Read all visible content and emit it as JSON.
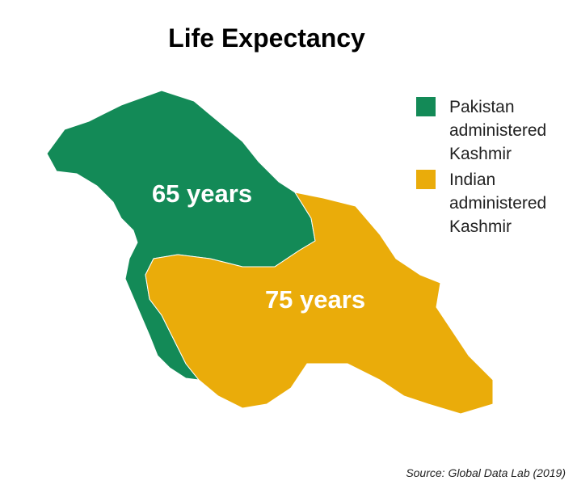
{
  "title": "Life Expectancy",
  "regions": [
    {
      "name": "Pakistan administered Kashmir",
      "color": "#138a57",
      "label": "65 years"
    },
    {
      "name": "Indian administered Kashmir",
      "color": "#eaac0a",
      "label": "75 years"
    }
  ],
  "source": "Source: Global Data Lab (2019)"
}
